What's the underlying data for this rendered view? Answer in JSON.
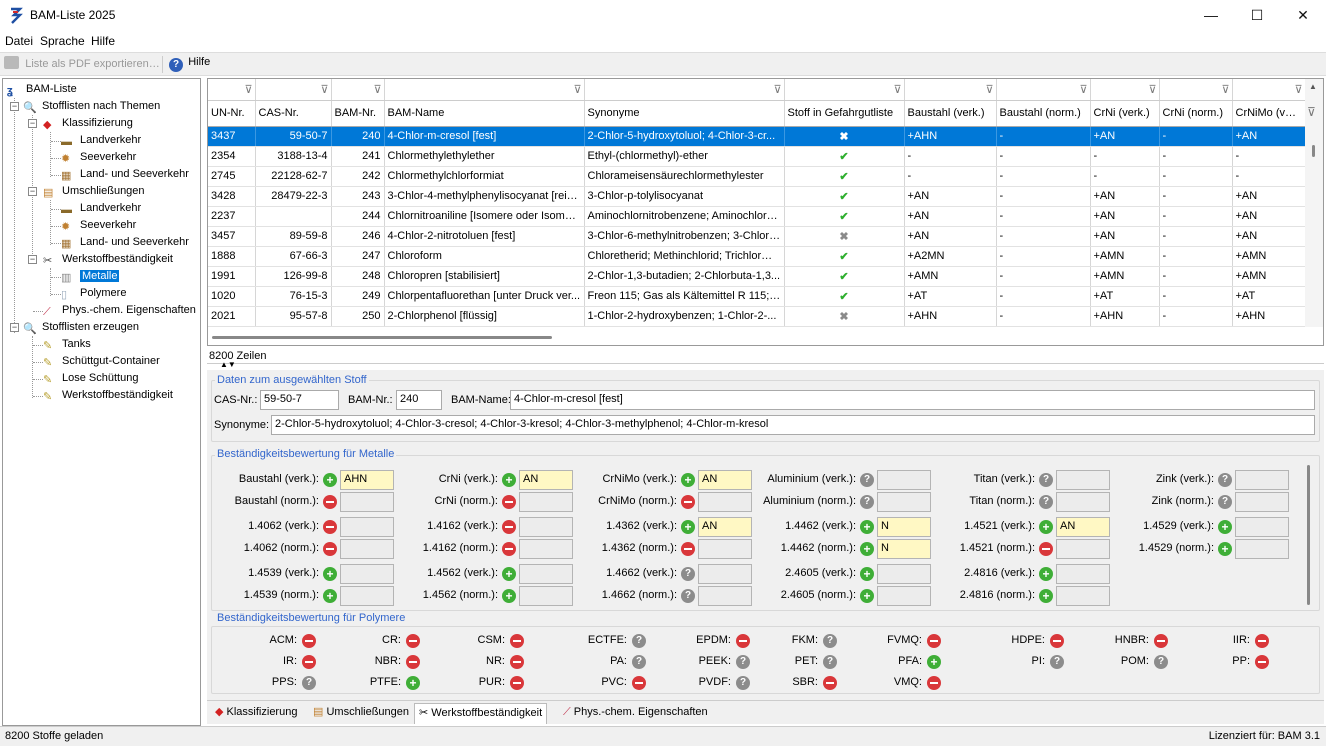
{
  "window": {
    "title": "BAM-Liste 2025",
    "minimize": "—",
    "maximize": "☐",
    "close": "✕"
  },
  "menu": [
    "Datei",
    "Sprache",
    "Hilfe"
  ],
  "toolbar": {
    "export_label": "Liste als PDF exportieren…",
    "help_label": "Hilfe"
  },
  "tree": {
    "root": "BAM-Liste",
    "themen": "Stofflisten nach Themen",
    "klassifizierung": "Klassifizierung",
    "kl_land": "Landverkehr",
    "kl_see": "Seeverkehr",
    "kl_landsee": "Land- und Seeverkehr",
    "umschliessungen": "Umschließungen",
    "um_land": "Landverkehr",
    "um_see": "Seeverkehr",
    "um_landsee": "Land- und Seeverkehr",
    "werkstoff": "Werkstoffbeständigkeit",
    "metalle": "Metalle",
    "polymere": "Polymere",
    "phys": "Phys.-chem. Eigenschaften",
    "erzeugen": "Stofflisten erzeugen",
    "tanks": "Tanks",
    "schuettgut": "Schüttgut-Container",
    "lose": "Lose Schüttung",
    "werkstoff2": "Werkstoffbeständigkeit"
  },
  "grid": {
    "columns": [
      "UN-Nr.",
      "CAS-Nr.",
      "BAM-Nr.",
      "BAM-Name",
      "Synonyme",
      "Stoff in Gefahrgutliste",
      "Baustahl (verk.)",
      "Baustahl (norm.)",
      "CrNi (verk.)",
      "CrNi (norm.)",
      "CrNiMo (verk.)"
    ],
    "rows": [
      {
        "un": "3437",
        "cas": "59-50-7",
        "bam": "240",
        "name": "4-Chlor-m-cresol [fest]",
        "syn": "2-Chlor-5-hydroxytoluol; 4-Chlor-3-cr...",
        "in_list": false,
        "bv": "+AHN",
        "bn": "-",
        "cv": "+AN",
        "cn": "-",
        "cmv": "+AN"
      },
      {
        "un": "2354",
        "cas": "3188-13-4",
        "bam": "241",
        "name": "Chlormethylethylether",
        "syn": "Ethyl-(chlormethyl)-ether",
        "in_list": true,
        "bv": "-",
        "bn": "-",
        "cv": "-",
        "cn": "-",
        "cmv": "-"
      },
      {
        "un": "2745",
        "cas": "22128-62-7",
        "bam": "242",
        "name": "Chlormethylchlorformiat",
        "syn": "Chlorameisensäurechlormethylester",
        "in_list": true,
        "bv": "-",
        "bn": "-",
        "cv": "-",
        "cn": "-",
        "cmv": "-"
      },
      {
        "un": "3428",
        "cas": "28479-22-3",
        "bam": "243",
        "name": "3-Chlor-4-methylphenylisocyanat [rein...",
        "syn": "3-Chlor-p-tolylisocyanat",
        "in_list": true,
        "bv": "+AN",
        "bn": "-",
        "cv": "+AN",
        "cn": "-",
        "cmv": "+AN"
      },
      {
        "un": "2237",
        "cas": "",
        "bam": "244",
        "name": "Chlornitroaniline [Isomere oder Isomer...",
        "syn": "Aminochlornitrobenzene; Aminochlorni...",
        "in_list": true,
        "bv": "+AN",
        "bn": "-",
        "cv": "+AN",
        "cn": "-",
        "cmv": "+AN"
      },
      {
        "un": "3457",
        "cas": "89-59-8",
        "bam": "246",
        "name": "4-Chlor-2-nitrotoluen [fest]",
        "syn": "3-Chlor-6-methylnitrobenzen; 3-Chlor-...",
        "in_list": false,
        "bv": "+AN",
        "bn": "-",
        "cv": "+AN",
        "cn": "-",
        "cmv": "+AN"
      },
      {
        "un": "1888",
        "cas": "67-66-3",
        "bam": "247",
        "name": "Chloroform",
        "syn": "Chloretherid; Methinchlorid; Trichlorme...",
        "in_list": true,
        "bv": "+A2MN",
        "bn": "-",
        "cv": "+AMN",
        "cn": "-",
        "cmv": "+AMN"
      },
      {
        "un": "1991",
        "cas": "126-99-8",
        "bam": "248",
        "name": "Chloropren [stabilisiert]",
        "syn": "2-Chlor-1,3-butadien; 2-Chlorbuta-1,3...",
        "in_list": true,
        "bv": "+AMN",
        "bn": "-",
        "cv": "+AMN",
        "cn": "-",
        "cmv": "+AMN"
      },
      {
        "un": "1020",
        "cas": "76-15-3",
        "bam": "249",
        "name": "Chlorpentafluorethan [unter Druck ver...",
        "syn": "Freon 115; Gas als Kältemittel R 115; ...",
        "in_list": true,
        "bv": "+AT",
        "bn": "-",
        "cv": "+AT",
        "cn": "-",
        "cmv": "+AT"
      },
      {
        "un": "2021",
        "cas": "95-57-8",
        "bam": "250",
        "name": "2-Chlorphenol [flüssig]",
        "syn": "1-Chlor-2-hydroxybenzen; 1-Chlor-2-...",
        "in_list": false,
        "bv": "+AHN",
        "bn": "-",
        "cv": "+AHN",
        "cn": "-",
        "cmv": "+AHN"
      }
    ],
    "row_count": "8200 Zeilen"
  },
  "detail": {
    "group_title": "Daten zum ausgewählten Stoff",
    "cas_label": "CAS-Nr.:",
    "cas_value": "59-50-7",
    "bam_label": "BAM-Nr.:",
    "bam_value": "240",
    "name_label": "BAM-Name:",
    "name_value": "4-Chlor-m-cresol [fest]",
    "syn_label": "Synonyme:",
    "syn_value": "2-Chlor-5-hydroxytoluol; 4-Chlor-3-cresol; 4-Chlor-3-kresol; 4-Chlor-3-methylphenol; 4-Chlor-m-kresol"
  },
  "metals": {
    "group_title": "Beständigkeitsbewertung für Metalle",
    "cells": [
      [
        {
          "label": "Baustahl (verk.):",
          "st": "plus",
          "val": "AHN"
        },
        {
          "label": "CrNi (verk.):",
          "st": "plus",
          "val": "AN"
        },
        {
          "label": "CrNiMo (verk.):",
          "st": "plus",
          "val": "AN"
        },
        {
          "label": "Aluminium (verk.):",
          "st": "q",
          "val": ""
        },
        {
          "label": "Titan (verk.):",
          "st": "q",
          "val": ""
        },
        {
          "label": "Zink (verk.):",
          "st": "q",
          "val": ""
        }
      ],
      [
        {
          "label": "Baustahl (norm.):",
          "st": "minus",
          "val": ""
        },
        {
          "label": "CrNi (norm.):",
          "st": "minus",
          "val": ""
        },
        {
          "label": "CrNiMo (norm.):",
          "st": "minus",
          "val": ""
        },
        {
          "label": "Aluminium (norm.):",
          "st": "q",
          "val": ""
        },
        {
          "label": "Titan (norm.):",
          "st": "q",
          "val": ""
        },
        {
          "label": "Zink (norm.):",
          "st": "q",
          "val": ""
        }
      ],
      [
        {
          "label": "1.4062 (verk.):",
          "st": "minus",
          "val": ""
        },
        {
          "label": "1.4162 (verk.):",
          "st": "minus",
          "val": ""
        },
        {
          "label": "1.4362 (verk.):",
          "st": "plus",
          "val": "AN"
        },
        {
          "label": "1.4462 (verk.):",
          "st": "plus",
          "val": "N"
        },
        {
          "label": "1.4521 (verk.):",
          "st": "plus",
          "val": "AN"
        },
        {
          "label": "1.4529 (verk.):",
          "st": "plus",
          "val": ""
        }
      ],
      [
        {
          "label": "1.4062 (norm.):",
          "st": "minus",
          "val": ""
        },
        {
          "label": "1.4162 (norm.):",
          "st": "minus",
          "val": ""
        },
        {
          "label": "1.4362 (norm.):",
          "st": "minus",
          "val": ""
        },
        {
          "label": "1.4462 (norm.):",
          "st": "plus",
          "val": "N"
        },
        {
          "label": "1.4521 (norm.):",
          "st": "minus",
          "val": ""
        },
        {
          "label": "1.4529 (norm.):",
          "st": "plus",
          "val": ""
        }
      ],
      [
        {
          "label": "1.4539 (verk.):",
          "st": "plus",
          "val": ""
        },
        {
          "label": "1.4562 (verk.):",
          "st": "plus",
          "val": ""
        },
        {
          "label": "1.4662 (verk.):",
          "st": "q",
          "val": ""
        },
        {
          "label": "2.4605 (verk.):",
          "st": "plus",
          "val": ""
        },
        {
          "label": "2.4816 (verk.):",
          "st": "plus",
          "val": ""
        }
      ],
      [
        {
          "label": "1.4539 (norm.):",
          "st": "plus",
          "val": ""
        },
        {
          "label": "1.4562 (norm.):",
          "st": "plus",
          "val": ""
        },
        {
          "label": "1.4662 (norm.):",
          "st": "q",
          "val": ""
        },
        {
          "label": "2.4605 (norm.):",
          "st": "plus",
          "val": ""
        },
        {
          "label": "2.4816 (norm.):",
          "st": "plus",
          "val": ""
        }
      ]
    ]
  },
  "polymers": {
    "group_title": "Beständigkeitsbewertung für Polymere",
    "cells": [
      [
        {
          "label": "ACM:",
          "st": "minus"
        },
        {
          "label": "CR:",
          "st": "minus"
        },
        {
          "label": "CSM:",
          "st": "minus"
        },
        {
          "label": "ECTFE:",
          "st": "q"
        },
        {
          "label": "EPDM:",
          "st": "minus"
        },
        {
          "label": "FKM:",
          "st": "q"
        },
        {
          "label": "FVMQ:",
          "st": "minus"
        },
        {
          "label": "HDPE:",
          "st": "minus"
        },
        {
          "label": "HNBR:",
          "st": "minus"
        },
        {
          "label": "IIR:",
          "st": "minus"
        }
      ],
      [
        {
          "label": "IR:",
          "st": "minus"
        },
        {
          "label": "NBR:",
          "st": "minus"
        },
        {
          "label": "NR:",
          "st": "minus"
        },
        {
          "label": "PA:",
          "st": "q"
        },
        {
          "label": "PEEK:",
          "st": "q"
        },
        {
          "label": "PET:",
          "st": "q"
        },
        {
          "label": "PFA:",
          "st": "plus"
        },
        {
          "label": "PI:",
          "st": "q"
        },
        {
          "label": "POM:",
          "st": "q"
        },
        {
          "label": "PP:",
          "st": "minus"
        }
      ],
      [
        {
          "label": "PPS:",
          "st": "q"
        },
        {
          "label": "PTFE:",
          "st": "plus"
        },
        {
          "label": "PUR:",
          "st": "minus"
        },
        {
          "label": "PVC:",
          "st": "minus"
        },
        {
          "label": "PVDF:",
          "st": "q"
        },
        {
          "label": "SBR:",
          "st": "minus"
        },
        {
          "label": "VMQ:",
          "st": "minus"
        }
      ]
    ]
  },
  "tabs": [
    "Klassifizierung",
    "Umschließungen",
    "Werkstoffbeständigkeit",
    "Phys.-chem. Eigenschaften"
  ],
  "status": {
    "left": "8200 Stoffe geladen",
    "right": "Lizenziert für: BAM 3.1"
  }
}
